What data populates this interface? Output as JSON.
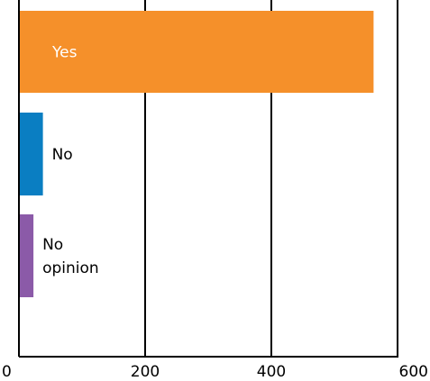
{
  "chart_data": {
    "type": "bar",
    "orientation": "horizontal",
    "categories": [
      "Yes",
      "No",
      "No\nopinion"
    ],
    "values": [
      562,
      38,
      23
    ],
    "colors": [
      "#f5902a",
      "#0a7ec2",
      "#8b5aa8"
    ],
    "label_colors": [
      "#ffffff",
      "#000000",
      "#000000"
    ],
    "xlim": [
      0,
      600
    ],
    "xticks": [
      0,
      200,
      400,
      600
    ],
    "grid": "vertical",
    "title": "",
    "xlabel": "",
    "ylabel": ""
  }
}
